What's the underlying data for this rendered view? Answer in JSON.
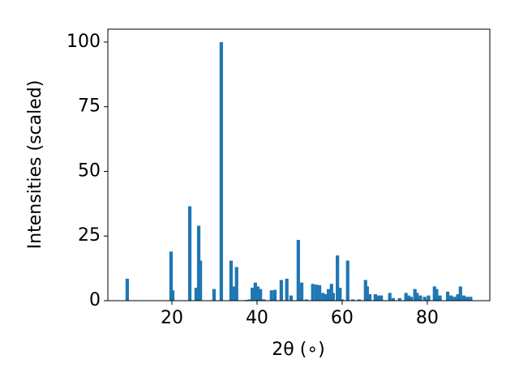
{
  "chart_data": {
    "type": "bar",
    "x_label": "2θ (∘)",
    "y_label": "Intensities (scaled)",
    "color": "#1f77b4",
    "x": [
      9.5,
      19.8,
      20.2,
      24.2,
      25.7,
      26.3,
      26.7,
      29.9,
      31.6,
      33.9,
      34.7,
      35.2,
      37.5,
      38.3,
      38.9,
      39.6,
      40.2,
      40.8,
      41.6,
      43.4,
      44.2,
      45.7,
      47.0,
      48.0,
      49.7,
      50.5,
      51.6,
      53.1,
      53.9,
      54.7,
      55.5,
      56.2,
      56.8,
      57.5,
      57.9,
      58.9,
      59.5,
      60.0,
      61.3,
      62.5,
      64.0,
      65.5,
      65.9,
      66.5,
      67.8,
      68.5,
      69.2,
      71.2,
      72.0,
      73.5,
      75.0,
      75.6,
      76.2,
      77.1,
      77.6,
      78.4,
      79.4,
      80.3,
      81.7,
      82.2,
      83.0,
      84.8,
      85.6,
      86.4,
      87.2,
      87.8,
      88.6,
      89.4,
      90.2
    ],
    "values": [
      8.5,
      19,
      4,
      36.5,
      5,
      29,
      15.5,
      4.5,
      100,
      15.5,
      5.5,
      13,
      0.3,
      0.5,
      5,
      7,
      5.5,
      4.5,
      0.5,
      4,
      4.2,
      8,
      8.5,
      2,
      23.5,
      7,
      0.5,
      6.5,
      6.2,
      6,
      3,
      2.5,
      4.5,
      6.5,
      3,
      17.5,
      5,
      0.5,
      15.5,
      0.5,
      0.5,
      8,
      5.5,
      2.5,
      2.5,
      2,
      2,
      3,
      1,
      1,
      3,
      2,
      1.5,
      4.5,
      3,
      2,
      1.5,
      2,
      5.5,
      4.5,
      2,
      3.5,
      2,
      1.5,
      2.5,
      5.5,
      2,
      1.5,
      1.5
    ],
    "xlim": [
      4.95,
      94.7
    ],
    "xticks": [
      20,
      40,
      60,
      80
    ],
    "ylim": [
      0,
      105
    ],
    "yticks": [
      0,
      25,
      50,
      75,
      100
    ],
    "grid": false
  }
}
